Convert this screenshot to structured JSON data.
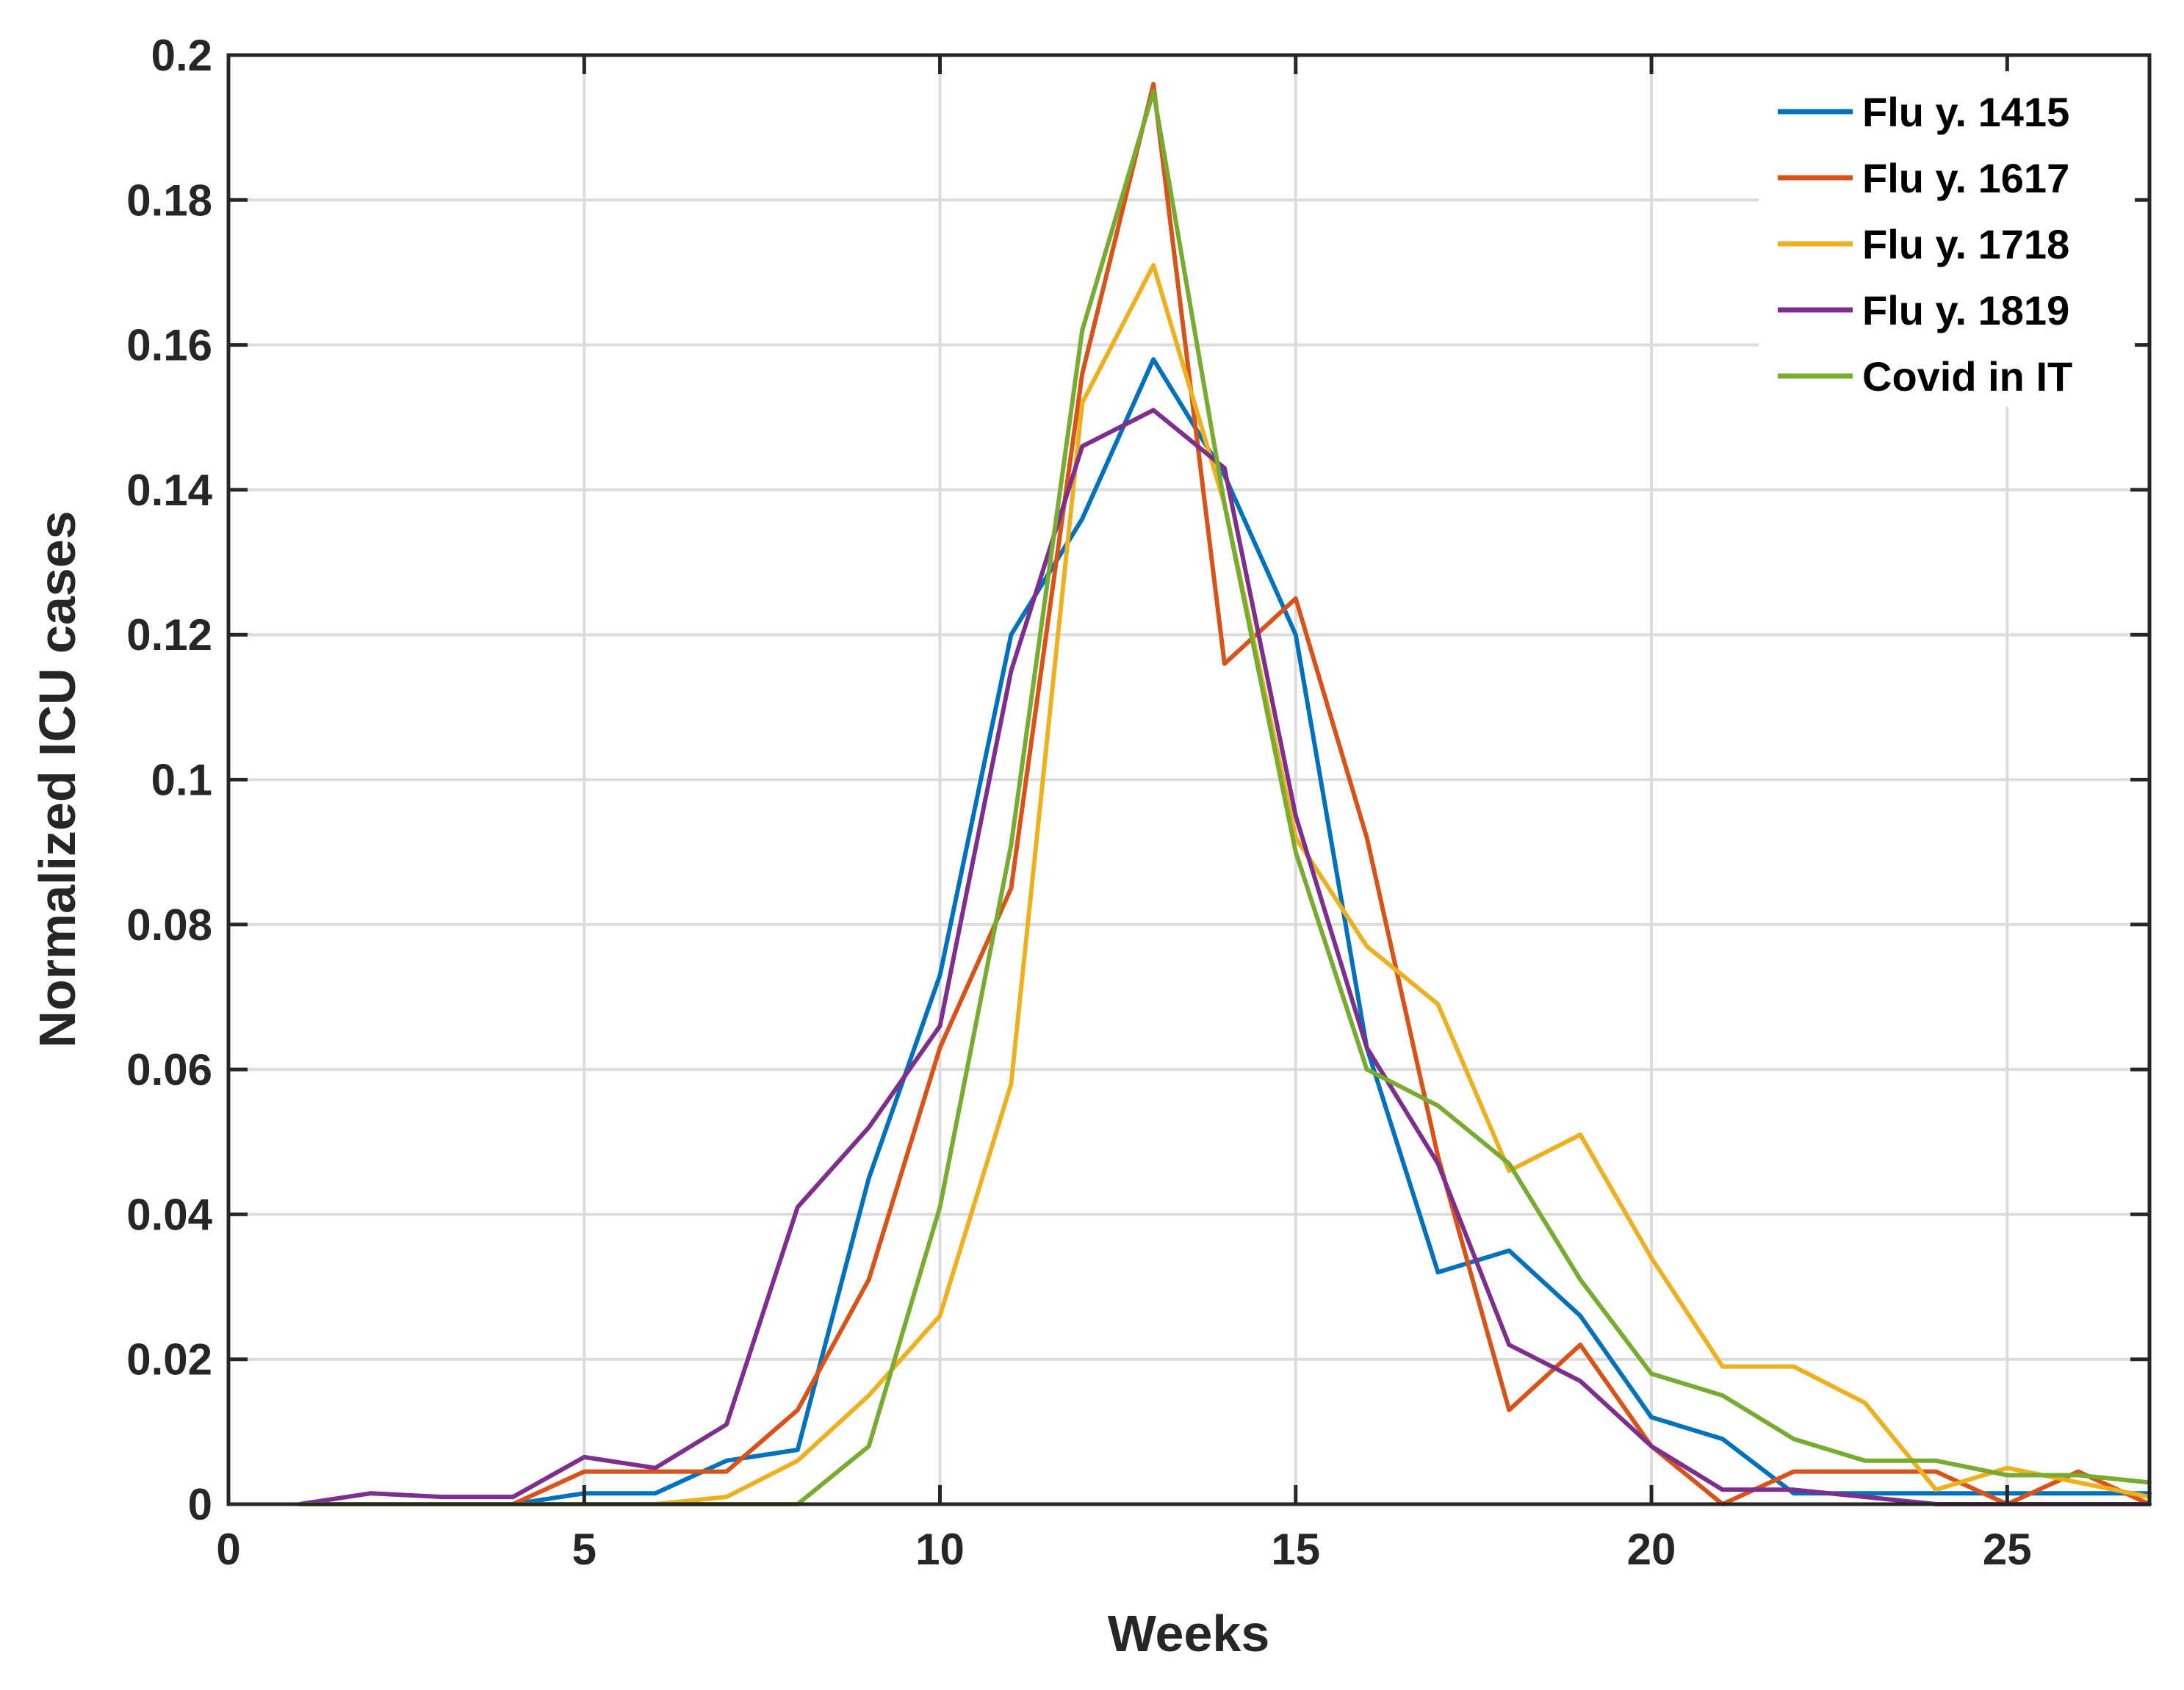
{
  "chart_data": {
    "type": "line",
    "title": "",
    "xlabel": "Weeks",
    "ylabel": "Normalized ICU cases",
    "xlim": [
      0,
      27
    ],
    "ylim": [
      0,
      0.2
    ],
    "grid": true,
    "legend_position": "top-right",
    "x_ticks": [
      0,
      5,
      10,
      15,
      20,
      25
    ],
    "x_tick_labels": [
      "0",
      "5",
      "10",
      "15",
      "20",
      "25"
    ],
    "y_ticks": [
      0,
      0.02,
      0.04,
      0.06,
      0.08,
      0.1,
      0.12,
      0.14,
      0.16,
      0.18,
      0.2
    ],
    "y_tick_labels": [
      "0",
      "0.02",
      "0.04",
      "0.06",
      "0.08",
      "0.1",
      "0.12",
      "0.14",
      "0.16",
      "0.18",
      "0.2"
    ],
    "x": [
      1,
      2,
      3,
      4,
      5,
      6,
      7,
      8,
      9,
      10,
      11,
      12,
      13,
      14,
      15,
      16,
      17,
      18,
      19,
      20,
      21,
      22,
      23,
      24,
      25,
      26,
      27
    ],
    "series": [
      {
        "name": "Flu y. 1415",
        "color": "#0072BD",
        "values": [
          0,
          0,
          0,
          0,
          0.0015,
          0.0015,
          0.006,
          0.0075,
          0.045,
          0.073,
          0.12,
          0.136,
          0.158,
          0.142,
          0.12,
          0.063,
          0.032,
          0.035,
          0.026,
          0.012,
          0.009,
          0.0015,
          0.0015,
          0.0015,
          0.0015,
          0.0015,
          0.0015
        ]
      },
      {
        "name": "Flu y. 1617",
        "color": "#D95319",
        "values": [
          0,
          0,
          0,
          0,
          0.0045,
          0.0045,
          0.0045,
          0.013,
          0.031,
          0.063,
          0.085,
          0.156,
          0.196,
          0.116,
          0.125,
          0.092,
          0.048,
          0.013,
          0.022,
          0.008,
          0,
          0.0045,
          0.0045,
          0.0045,
          0,
          0.0045,
          0
        ]
      },
      {
        "name": "Flu y. 1718",
        "color": "#EDB120",
        "values": [
          0,
          0,
          0,
          0,
          0,
          0,
          0.001,
          0.006,
          0.015,
          0.026,
          0.058,
          0.152,
          0.171,
          0.138,
          0.092,
          0.077,
          0.069,
          0.046,
          0.051,
          0.034,
          0.019,
          0.019,
          0.014,
          0.002,
          0.005,
          0.003,
          0.001
        ]
      },
      {
        "name": "Flu y. 1819",
        "color": "#7E2F8E",
        "values": [
          0,
          0.0015,
          0.001,
          0.001,
          0.0065,
          0.005,
          0.011,
          0.041,
          0.052,
          0.066,
          0.115,
          0.146,
          0.151,
          0.143,
          0.095,
          0.063,
          0.047,
          0.022,
          0.017,
          0.008,
          0.002,
          0.002,
          0.001,
          0,
          0,
          0,
          0
        ]
      },
      {
        "name": "Covid in IT",
        "color": "#77AC30",
        "values": [
          0,
          0,
          0,
          0,
          0,
          0,
          0,
          0,
          0.008,
          0.041,
          0.091,
          0.162,
          0.195,
          0.138,
          0.09,
          0.06,
          0.055,
          0.047,
          0.031,
          0.018,
          0.015,
          0.009,
          0.006,
          0.006,
          0.004,
          0.004,
          0.003
        ]
      }
    ]
  }
}
